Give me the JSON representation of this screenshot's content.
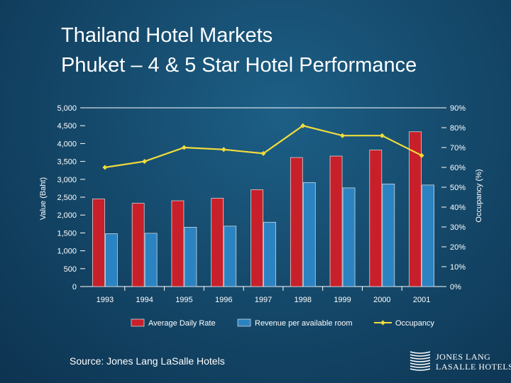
{
  "header": {
    "title": "Thailand Hotel Markets",
    "subtitle": "Phuket – 4 & 5 Star Hotel Performance"
  },
  "footer": {
    "source": "Source: Jones Lang LaSalle Hotels",
    "logo_line1": "JONES LANG",
    "logo_line2": "LASALLE HOTELS."
  },
  "colors": {
    "adr": "#c8202a",
    "revpar": "#2b83c2",
    "occupancy": "#f2dc3c",
    "axis_text": "#ffffff"
  },
  "chart_data": {
    "type": "bar",
    "categories": [
      "1993",
      "1994",
      "1995",
      "1996",
      "1997",
      "1998",
      "1999",
      "2000",
      "2001"
    ],
    "ylabel": "Value (Baht)",
    "y2label": "Occupancy (%)",
    "ylim": [
      0,
      5000
    ],
    "yticks": [
      "0",
      "500",
      "1,000",
      "1,500",
      "2,000",
      "2,500",
      "3,000",
      "3,500",
      "4,000",
      "4,500",
      "5,000"
    ],
    "y2lim": [
      0,
      90
    ],
    "y2ticks": [
      "0%",
      "10%",
      "20%",
      "30%",
      "40%",
      "50%",
      "60%",
      "70%",
      "80%",
      "90%"
    ],
    "series": [
      {
        "name": "Average Daily Rate",
        "type": "bar",
        "values": [
          2450,
          2330,
          2400,
          2470,
          2710,
          3610,
          3650,
          3820,
          4330
        ]
      },
      {
        "name": "Revenue per available room",
        "type": "bar",
        "values": [
          1480,
          1490,
          1660,
          1690,
          1800,
          2910,
          2760,
          2870,
          2840
        ]
      },
      {
        "name": "Occupancy",
        "type": "line",
        "axis": "right",
        "values": [
          60,
          63,
          70,
          69,
          67,
          81,
          76,
          76,
          66
        ]
      }
    ],
    "legend_position": "bottom",
    "grid": false
  }
}
